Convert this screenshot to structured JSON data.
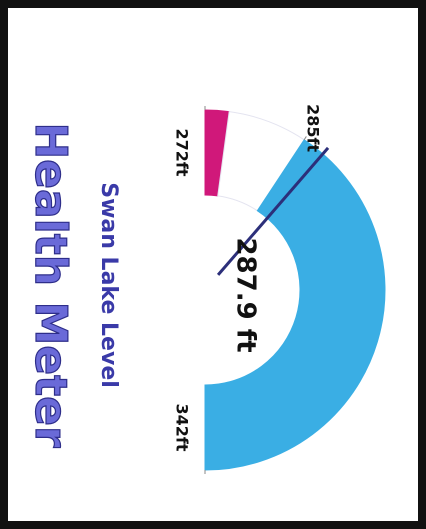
{
  "chart_data": {
    "type": "gauge",
    "title": "Health Meter",
    "subtitle": "Swan Lake Level",
    "value": 287.9,
    "value_label": "287.9 ft",
    "ylim": [
      272,
      342
    ],
    "yticks": [
      {
        "value": 272,
        "label": "272ft"
      },
      {
        "value": 285,
        "label": "285ft"
      },
      {
        "value": 342,
        "label": "342ft"
      }
    ],
    "bands": [
      {
        "from": 272,
        "to": 275,
        "color": "#d0187a"
      },
      {
        "from": 275,
        "to": 285,
        "color": "#ffffff"
      },
      {
        "from": 285,
        "to": 342,
        "color": "#3aaee4"
      }
    ],
    "needle_color": "#2c2f7a"
  }
}
